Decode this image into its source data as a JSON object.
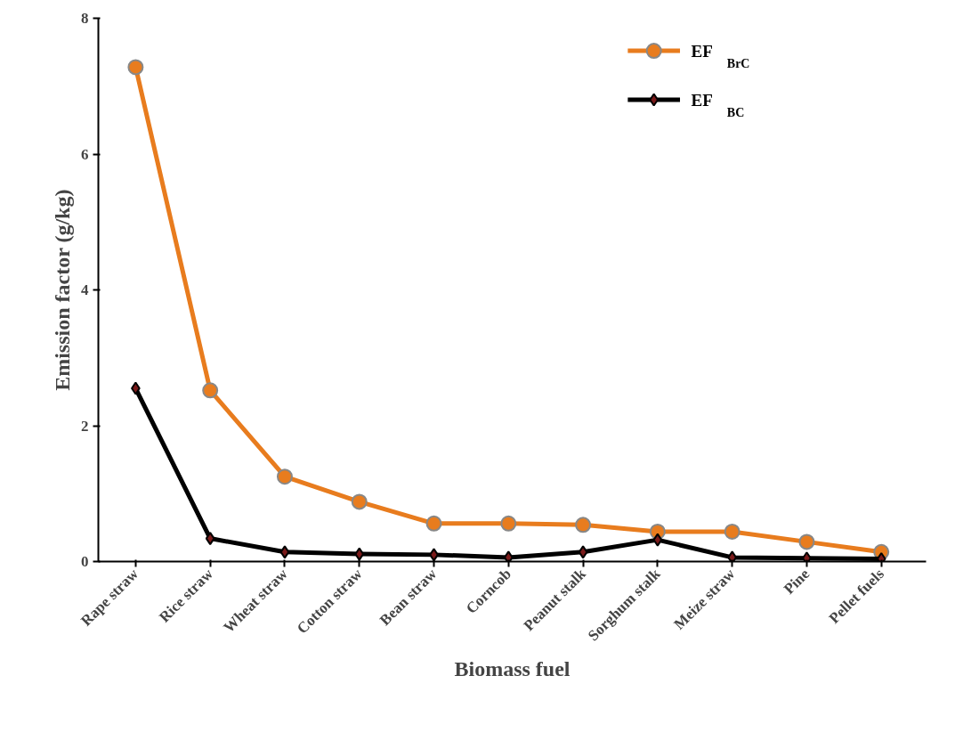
{
  "chart_data": {
    "type": "line",
    "xlabel": "Biomass fuel",
    "ylabel": "Emission factor (g/kg)",
    "categories": [
      "Rape straw",
      "Rice straw",
      "Wheat straw",
      "Cotton straw",
      "Bean straw",
      "Corncob",
      "Peanut stalk",
      "Sorghum stalk",
      "Meize straw",
      "Pine",
      "Pellet fuels"
    ],
    "series": [
      {
        "name": "EF$_{BrC}$",
        "color": "#e87c1e",
        "marker": "circle",
        "values": [
          7.28,
          2.52,
          1.25,
          0.88,
          0.56,
          0.56,
          0.54,
          0.44,
          0.44,
          0.29,
          0.14
        ]
      },
      {
        "name": "EF$_{BC}$",
        "color": "#000000",
        "marker": "diamond",
        "values": [
          2.55,
          0.34,
          0.14,
          0.11,
          0.1,
          0.06,
          0.14,
          0.32,
          0.06,
          0.05,
          0.04
        ]
      }
    ],
    "ylim": [
      0,
      8
    ],
    "yticks": [
      0,
      2,
      4,
      6,
      8
    ],
    "grid": false,
    "legend": "top right",
    "line_style": "solid"
  }
}
